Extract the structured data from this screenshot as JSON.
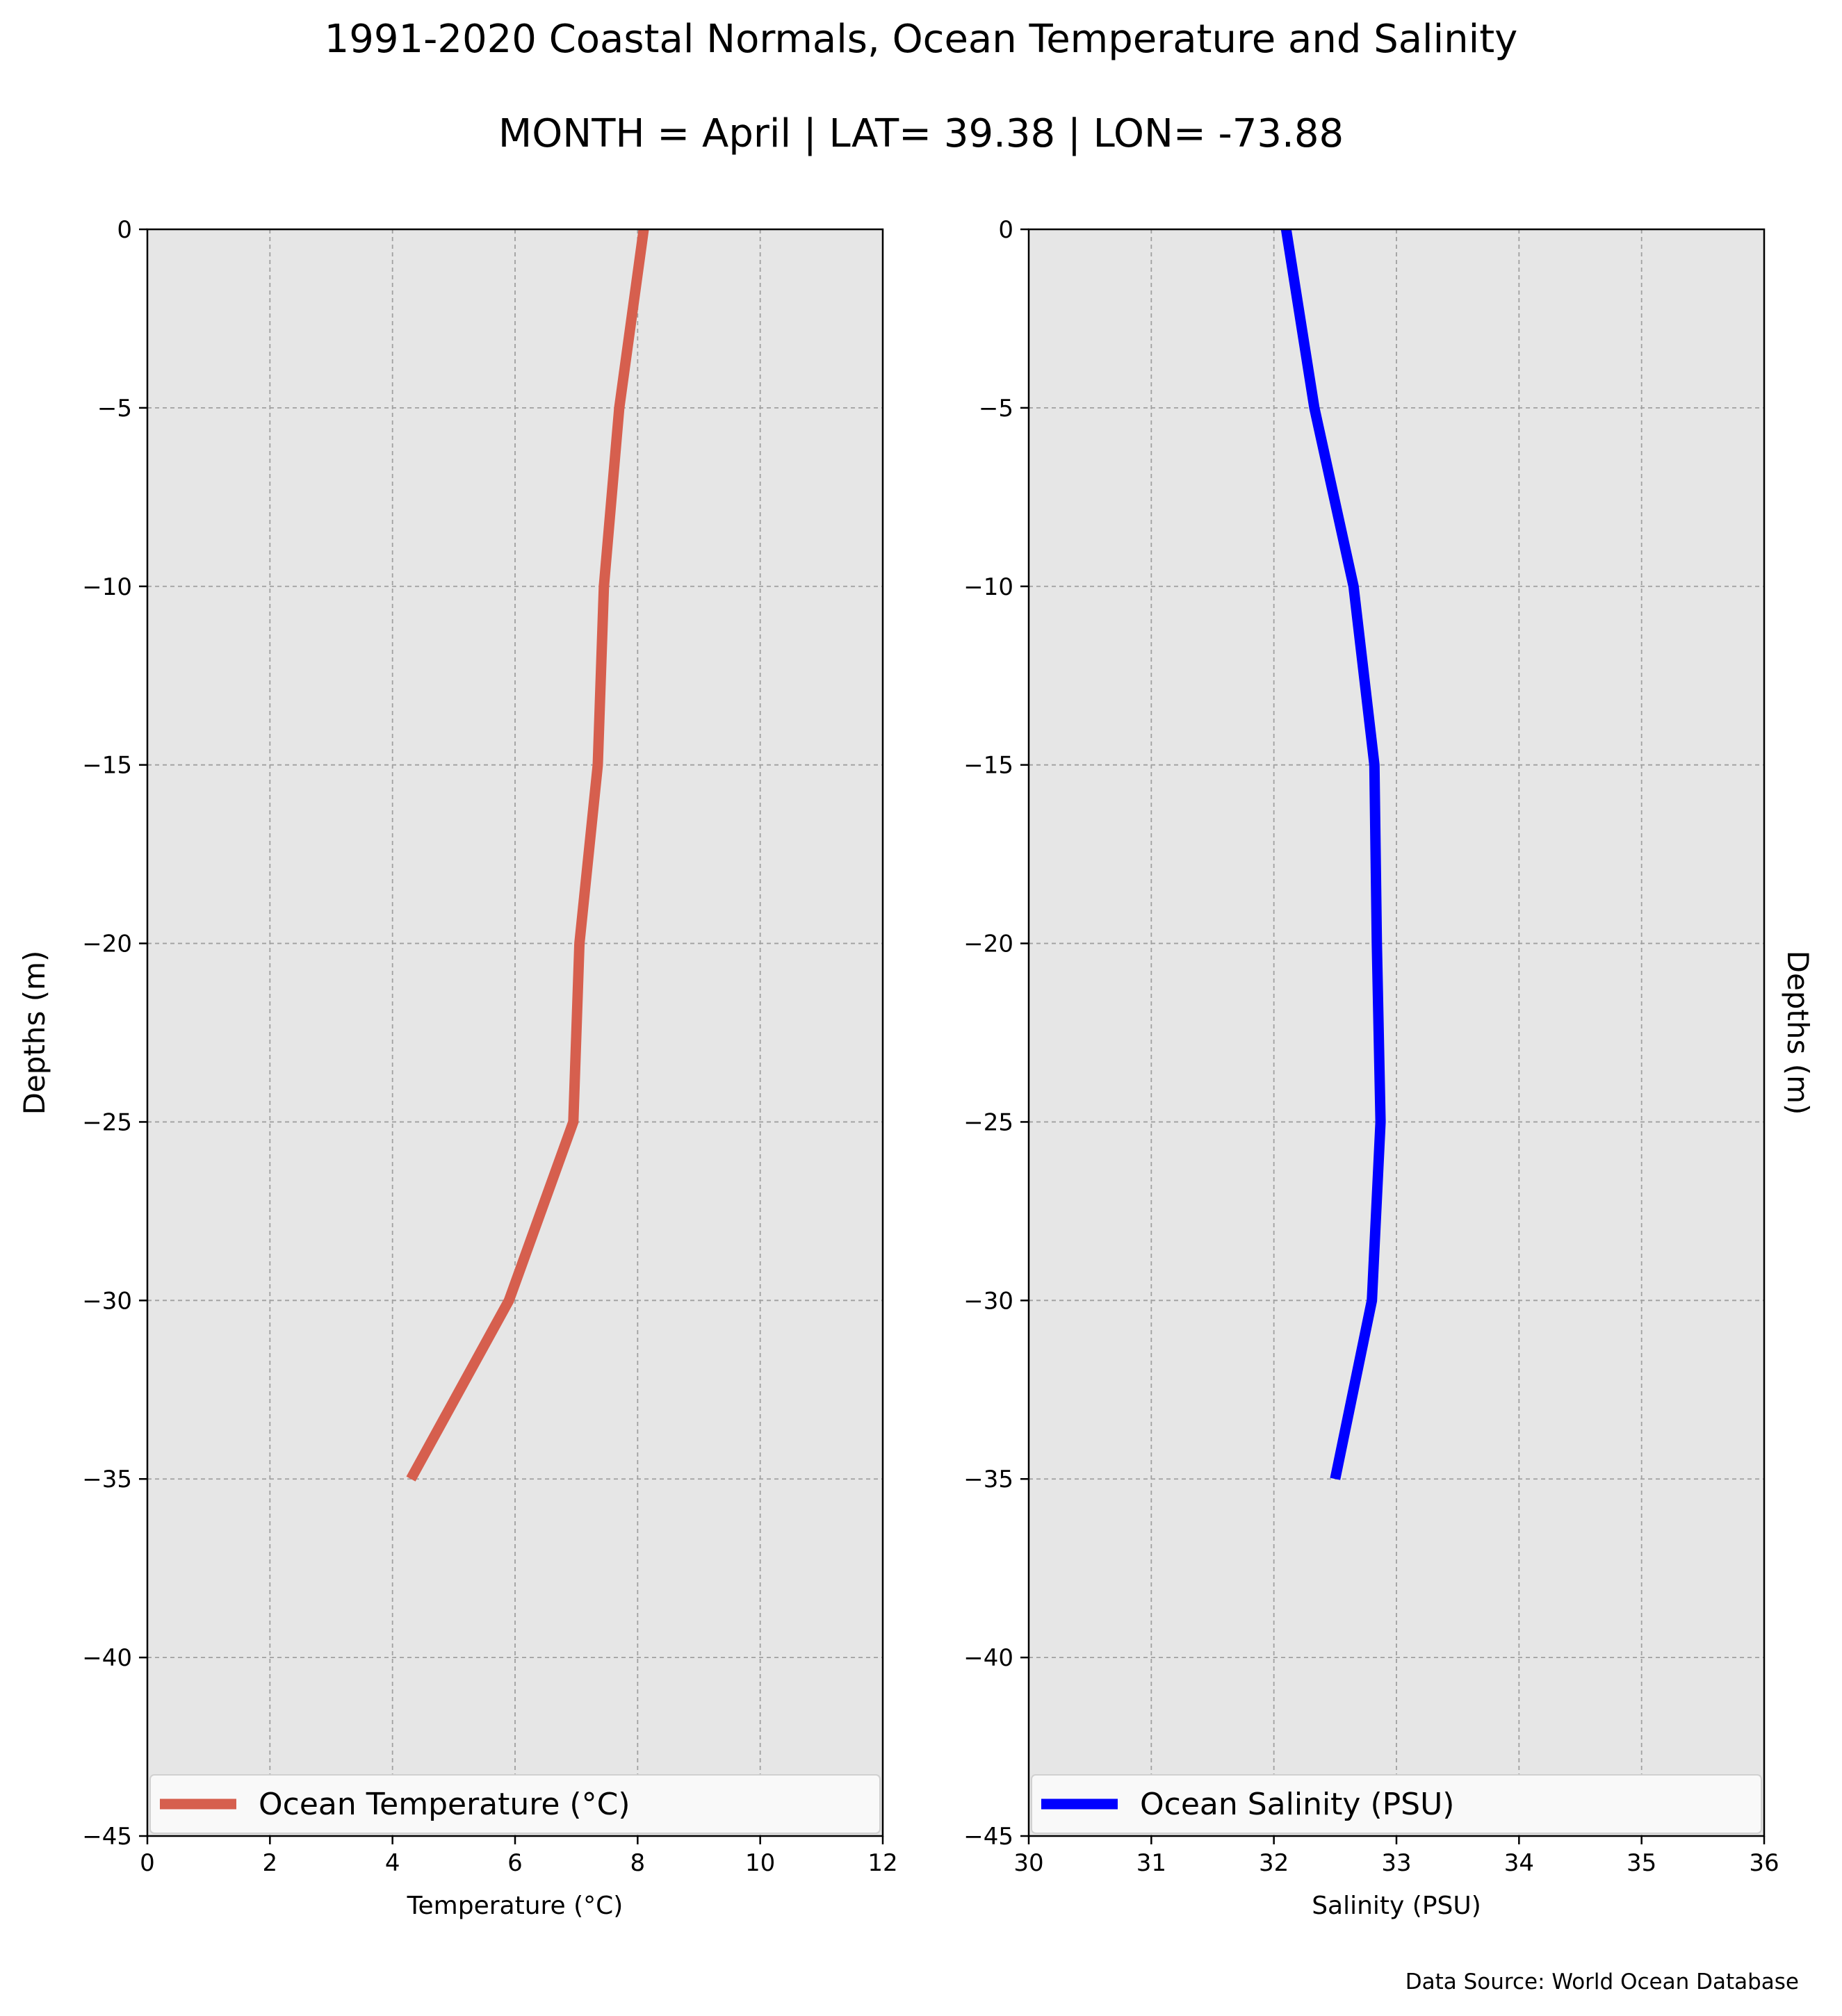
{
  "title": "1991-2020 Coastal Normals, Ocean Temperature and Salinity",
  "subtitle": "MONTH = April | LAT= 39.38 | LON= -73.88",
  "source": "Data Source: World Ocean Database",
  "colors": {
    "temperature": "#d65f4e",
    "salinity": "#0000ff",
    "axes_bg": "#e6e6e6",
    "grid": "#a0a0a0"
  },
  "chart_data": [
    {
      "type": "line",
      "xlabel": "Temperature ($^\\circ$C)",
      "xlabel_display": "Temperature (°C)",
      "ylabel": "Depths (m)",
      "xlim": [
        0,
        12
      ],
      "ylim": [
        -45,
        0
      ],
      "xticks": [
        0,
        2,
        4,
        6,
        8,
        10,
        12
      ],
      "yticks": [
        0,
        -5,
        -10,
        -15,
        -20,
        -25,
        -30,
        -35,
        -40,
        -45
      ],
      "ytick_labels": [
        "0",
        "−5",
        "−10",
        "−15",
        "−20",
        "−25",
        "−30",
        "−35",
        "−40",
        "−45"
      ],
      "grid": true,
      "legend_position": "bottom",
      "series": [
        {
          "name": "Ocean Temperature (°C)",
          "color": "#d65f4e",
          "x": [
            8.1,
            7.7,
            7.45,
            7.35,
            7.05,
            6.95,
            5.9,
            4.3
          ],
          "y": [
            0,
            -5,
            -10,
            -15,
            -20,
            -25,
            -30,
            -35
          ]
        }
      ]
    },
    {
      "type": "line",
      "xlabel": "Salinity (PSU)",
      "ylabel": "Depths (m)",
      "xlim": [
        30,
        36
      ],
      "ylim": [
        -45,
        0
      ],
      "xticks": [
        30,
        31,
        32,
        33,
        34,
        35,
        36
      ],
      "yticks": [
        0,
        -5,
        -10,
        -15,
        -20,
        -25,
        -30,
        -35,
        -40,
        -45
      ],
      "ytick_labels": [
        "0",
        "−5",
        "−10",
        "−15",
        "−20",
        "−25",
        "−30",
        "−35",
        "−40",
        "−45"
      ],
      "grid": true,
      "legend_position": "bottom",
      "series": [
        {
          "name": "Ocean Salinity (PSU)",
          "color": "#0000ff",
          "x": [
            32.1,
            32.33,
            32.65,
            32.82,
            32.84,
            32.87,
            32.8,
            32.5
          ],
          "y": [
            0,
            -5,
            -10,
            -15,
            -20,
            -25,
            -30,
            -35
          ]
        }
      ]
    }
  ]
}
